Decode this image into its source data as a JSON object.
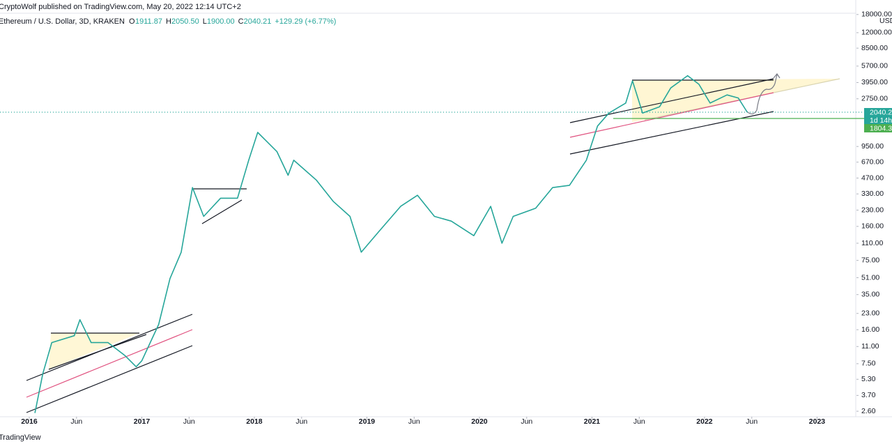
{
  "chart_data": {
    "type": "line",
    "title": "CryptoWolf published on TradingView.com, May 20, 2022 12:14 UTC+2",
    "subtitle": "Ethereum / U.S. Dollar, 3D, KRAKEN",
    "ohlc": [
      "O",
      "1911.87",
      "H",
      "2050.50",
      "L",
      "1900.00",
      "C",
      "2040.21",
      "+129.29 (+6.77%)"
    ],
    "price_labels": [
      "2040.2",
      "1d 14h",
      "1804.3"
    ],
    "currency": "USD",
    "footer": "TradingView",
    "color": "#26a69a",
    "log_scale": true,
    "grid": false,
    "x": [
      2016.05,
      2016.12,
      2016.2,
      2016.4,
      2016.45,
      2016.55,
      2016.7,
      2016.85,
      2016.95,
      2017.0,
      2017.15,
      2017.25,
      2017.35,
      2017.45,
      2017.55,
      2017.7,
      2017.85,
      2017.95,
      2018.03,
      2018.2,
      2018.3,
      2018.35,
      2018.55,
      2018.7,
      2018.85,
      2018.95,
      2019.1,
      2019.3,
      2019.45,
      2019.6,
      2019.75,
      2019.95,
      2020.1,
      2020.2,
      2020.3,
      2020.5,
      2020.65,
      2020.8,
      2020.95,
      2021.05,
      2021.15,
      2021.3,
      2021.36,
      2021.45,
      2021.6,
      2021.7,
      2021.85,
      2021.95,
      2022.05,
      2022.2,
      2022.3,
      2022.38
    ],
    "values": [
      2.5,
      6,
      12,
      14,
      20,
      12,
      12,
      9,
      7,
      8,
      18,
      50,
      90,
      380,
      200,
      300,
      300,
      700,
      1300,
      850,
      500,
      700,
      450,
      280,
      200,
      90,
      140,
      250,
      320,
      200,
      180,
      130,
      250,
      110,
      200,
      240,
      380,
      400,
      700,
      1500,
      2000,
      2500,
      4100,
      2000,
      2300,
      3500,
      4600,
      3800,
      2500,
      3000,
      2800,
      2040
    ],
    "xlim": [
      2015.74,
      2023.344
    ],
    "ylim": [
      2.3,
      18800
    ],
    "xticks": [
      {
        "value": 2016,
        "label": "2016"
      },
      {
        "value": 2016.42,
        "label": "Jun"
      },
      {
        "value": 2017,
        "label": "2017"
      },
      {
        "value": 2017.42,
        "label": "Jun"
      },
      {
        "value": 2018,
        "label": "2018"
      },
      {
        "value": 2018.42,
        "label": "Jun"
      },
      {
        "value": 2019,
        "label": "2019"
      },
      {
        "value": 2019.42,
        "label": "Jun"
      },
      {
        "value": 2020,
        "label": "2020"
      },
      {
        "value": 2020.42,
        "label": "Jun"
      },
      {
        "value": 2021,
        "label": "2021"
      },
      {
        "value": 2021.42,
        "label": "Jun"
      },
      {
        "value": 2022,
        "label": "2022"
      },
      {
        "value": 2022.42,
        "label": "Jun"
      },
      {
        "value": 2023,
        "label": "2023"
      }
    ],
    "yticks": [
      {
        "value": 18000,
        "label": "18000.00"
      },
      {
        "value": 12000,
        "label": "12000.00"
      },
      {
        "value": 8500,
        "label": "8500.00"
      },
      {
        "value": 5700,
        "label": "5700.00"
      },
      {
        "value": 3950,
        "label": "3950.00"
      },
      {
        "value": 2750,
        "label": "2750.00"
      },
      {
        "value": 950,
        "label": "950.00"
      },
      {
        "value": 670,
        "label": "670.00"
      },
      {
        "value": 470,
        "label": "470.00"
      },
      {
        "value": 330,
        "label": "330.00"
      },
      {
        "value": 230,
        "label": "230.00"
      },
      {
        "value": 160,
        "label": "160.00"
      },
      {
        "value": 110,
        "label": "110.00"
      },
      {
        "value": 75,
        "label": "75.00"
      },
      {
        "value": 51,
        "label": "51.00"
      },
      {
        "value": 35,
        "label": "35.00"
      },
      {
        "value": 23,
        "label": "23.00"
      },
      {
        "value": 16,
        "label": "16.00"
      },
      {
        "value": 11,
        "label": "11.00"
      },
      {
        "value": 7.5,
        "label": "7.50"
      },
      {
        "value": 5.3,
        "label": "5.30"
      },
      {
        "value": 3.7,
        "label": "3.70"
      },
      {
        "value": 2.6,
        "label": "2.60"
      }
    ]
  }
}
